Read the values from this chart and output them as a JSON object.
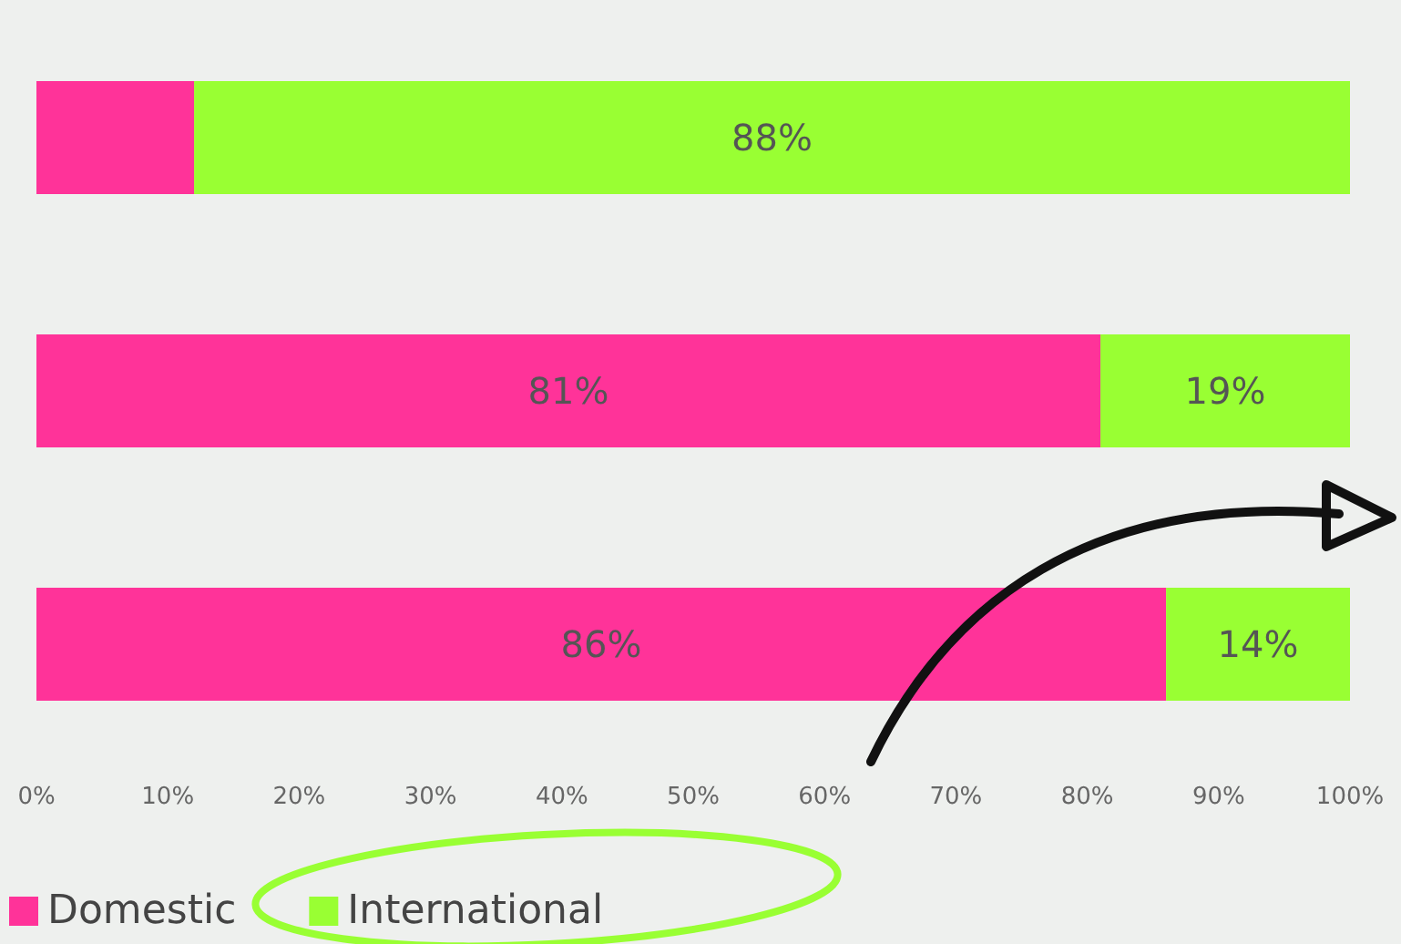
{
  "chart_data": {
    "type": "bar",
    "orientation": "horizontal",
    "stacked": true,
    "categories": [
      null,
      null,
      null
    ],
    "series": [
      {
        "name": "Domestic",
        "color": "#ff3399",
        "values": [
          12,
          81,
          86
        ],
        "value_labels": [
          null,
          "81%",
          "86%"
        ]
      },
      {
        "name": "International",
        "color": "#99ff33",
        "values": [
          88,
          19,
          14
        ],
        "value_labels": [
          "88%",
          "19%",
          "14%"
        ]
      }
    ],
    "xlim": [
      0,
      100
    ],
    "xticks": [
      {
        "value": 0,
        "label": "0%"
      },
      {
        "value": 10,
        "label": "10%"
      },
      {
        "value": 20,
        "label": "20%"
      },
      {
        "value": 30,
        "label": "30%"
      },
      {
        "value": 40,
        "label": "40%"
      },
      {
        "value": 50,
        "label": "50%"
      },
      {
        "value": 60,
        "label": "60%"
      },
      {
        "value": 70,
        "label": "70%"
      },
      {
        "value": 80,
        "label": "80%"
      },
      {
        "value": 90,
        "label": "90%"
      },
      {
        "value": 100,
        "label": "100%"
      }
    ],
    "grid": false,
    "legend": "bottom left"
  }
}
